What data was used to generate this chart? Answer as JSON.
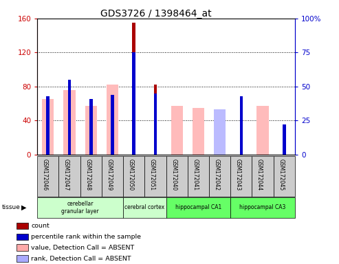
{
  "title": "GDS3726 / 1398464_at",
  "samples": [
    "GSM172046",
    "GSM172047",
    "GSM172048",
    "GSM172049",
    "GSM172050",
    "GSM172051",
    "GSM172040",
    "GSM172041",
    "GSM172042",
    "GSM172043",
    "GSM172044",
    "GSM172045"
  ],
  "count": [
    0,
    0,
    0,
    0,
    155,
    82,
    0,
    0,
    0,
    58,
    0,
    35
  ],
  "percentile_rank": [
    43,
    55,
    41,
    44,
    75,
    45,
    0,
    0,
    0,
    43,
    0,
    22
  ],
  "value_absent": [
    65,
    76,
    57,
    82,
    0,
    0,
    57,
    55,
    0,
    0,
    57,
    0
  ],
  "rank_absent": [
    0,
    0,
    0,
    0,
    0,
    0,
    0,
    0,
    33,
    0,
    0,
    0
  ],
  "ylim_left": [
    0,
    160
  ],
  "ylim_right": [
    0,
    100
  ],
  "yticks_left": [
    0,
    40,
    80,
    120,
    160
  ],
  "yticks_right": [
    0,
    25,
    50,
    75,
    100
  ],
  "yticklabels_left": [
    "0",
    "40",
    "80",
    "120",
    "160"
  ],
  "yticklabels_right": [
    "0",
    "25",
    "50",
    "75",
    "100%"
  ],
  "left_axis_color": "#cc0000",
  "right_axis_color": "#0000cc",
  "wide_bar_width": 0.55,
  "narrow_bar_width": 0.15,
  "tissues": [
    {
      "label": "cerebellar\ngranular layer",
      "start": 0,
      "end": 3,
      "color": "#ccffcc"
    },
    {
      "label": "cerebral cortex",
      "start": 4,
      "end": 5,
      "color": "#ccffcc"
    },
    {
      "label": "hippocampal CA1",
      "start": 6,
      "end": 8,
      "color": "#66ff66"
    },
    {
      "label": "hippocampal CA3",
      "start": 9,
      "end": 11,
      "color": "#66ff66"
    }
  ],
  "legend_items": [
    {
      "label": "count",
      "color": "#aa0000"
    },
    {
      "label": "percentile rank within the sample",
      "color": "#0000cc"
    },
    {
      "label": "value, Detection Call = ABSENT",
      "color": "#ffaaaa"
    },
    {
      "label": "rank, Detection Call = ABSENT",
      "color": "#aaaaff"
    }
  ],
  "background_color": "#ffffff",
  "tick_area_color": "#cccccc"
}
